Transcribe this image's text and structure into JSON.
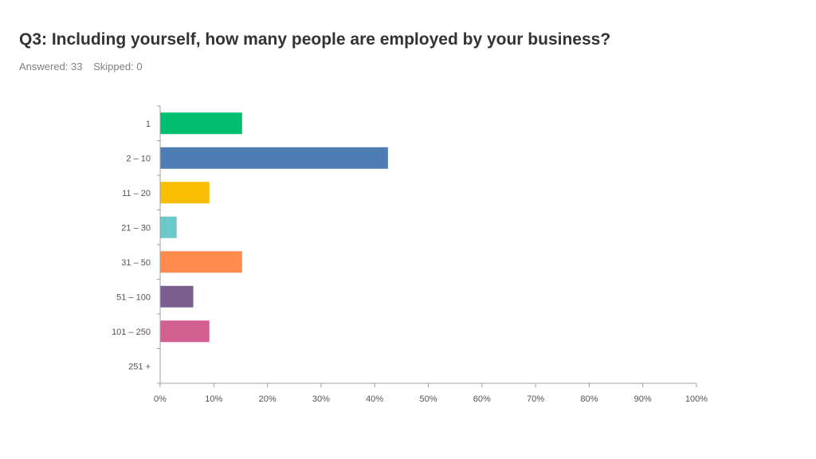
{
  "question": {
    "title": "Q3: Including yourself, how many people are employed by your business?",
    "answered": "Answered: 33",
    "skipped": "Skipped: 0"
  },
  "chart_data": {
    "type": "bar",
    "orientation": "horizontal",
    "categories": [
      "1",
      "2 – 10",
      "11 – 20",
      "21 – 30",
      "31 – 50",
      "51 – 100",
      "101 – 250",
      "251 +"
    ],
    "values": [
      15.2,
      42.4,
      9.1,
      3.0,
      15.2,
      6.1,
      9.1,
      0
    ],
    "colors": [
      "#00bf6f",
      "#507cb6",
      "#f9be00",
      "#6bc8cd",
      "#ff8b4f",
      "#7d5e90",
      "#d25f90",
      "#d25f90"
    ],
    "xlim": [
      0,
      100
    ],
    "xticks": [
      "0%",
      "10%",
      "20%",
      "30%",
      "40%",
      "50%",
      "60%",
      "70%",
      "80%",
      "90%",
      "100%"
    ],
    "unit": "%",
    "grid": false
  }
}
